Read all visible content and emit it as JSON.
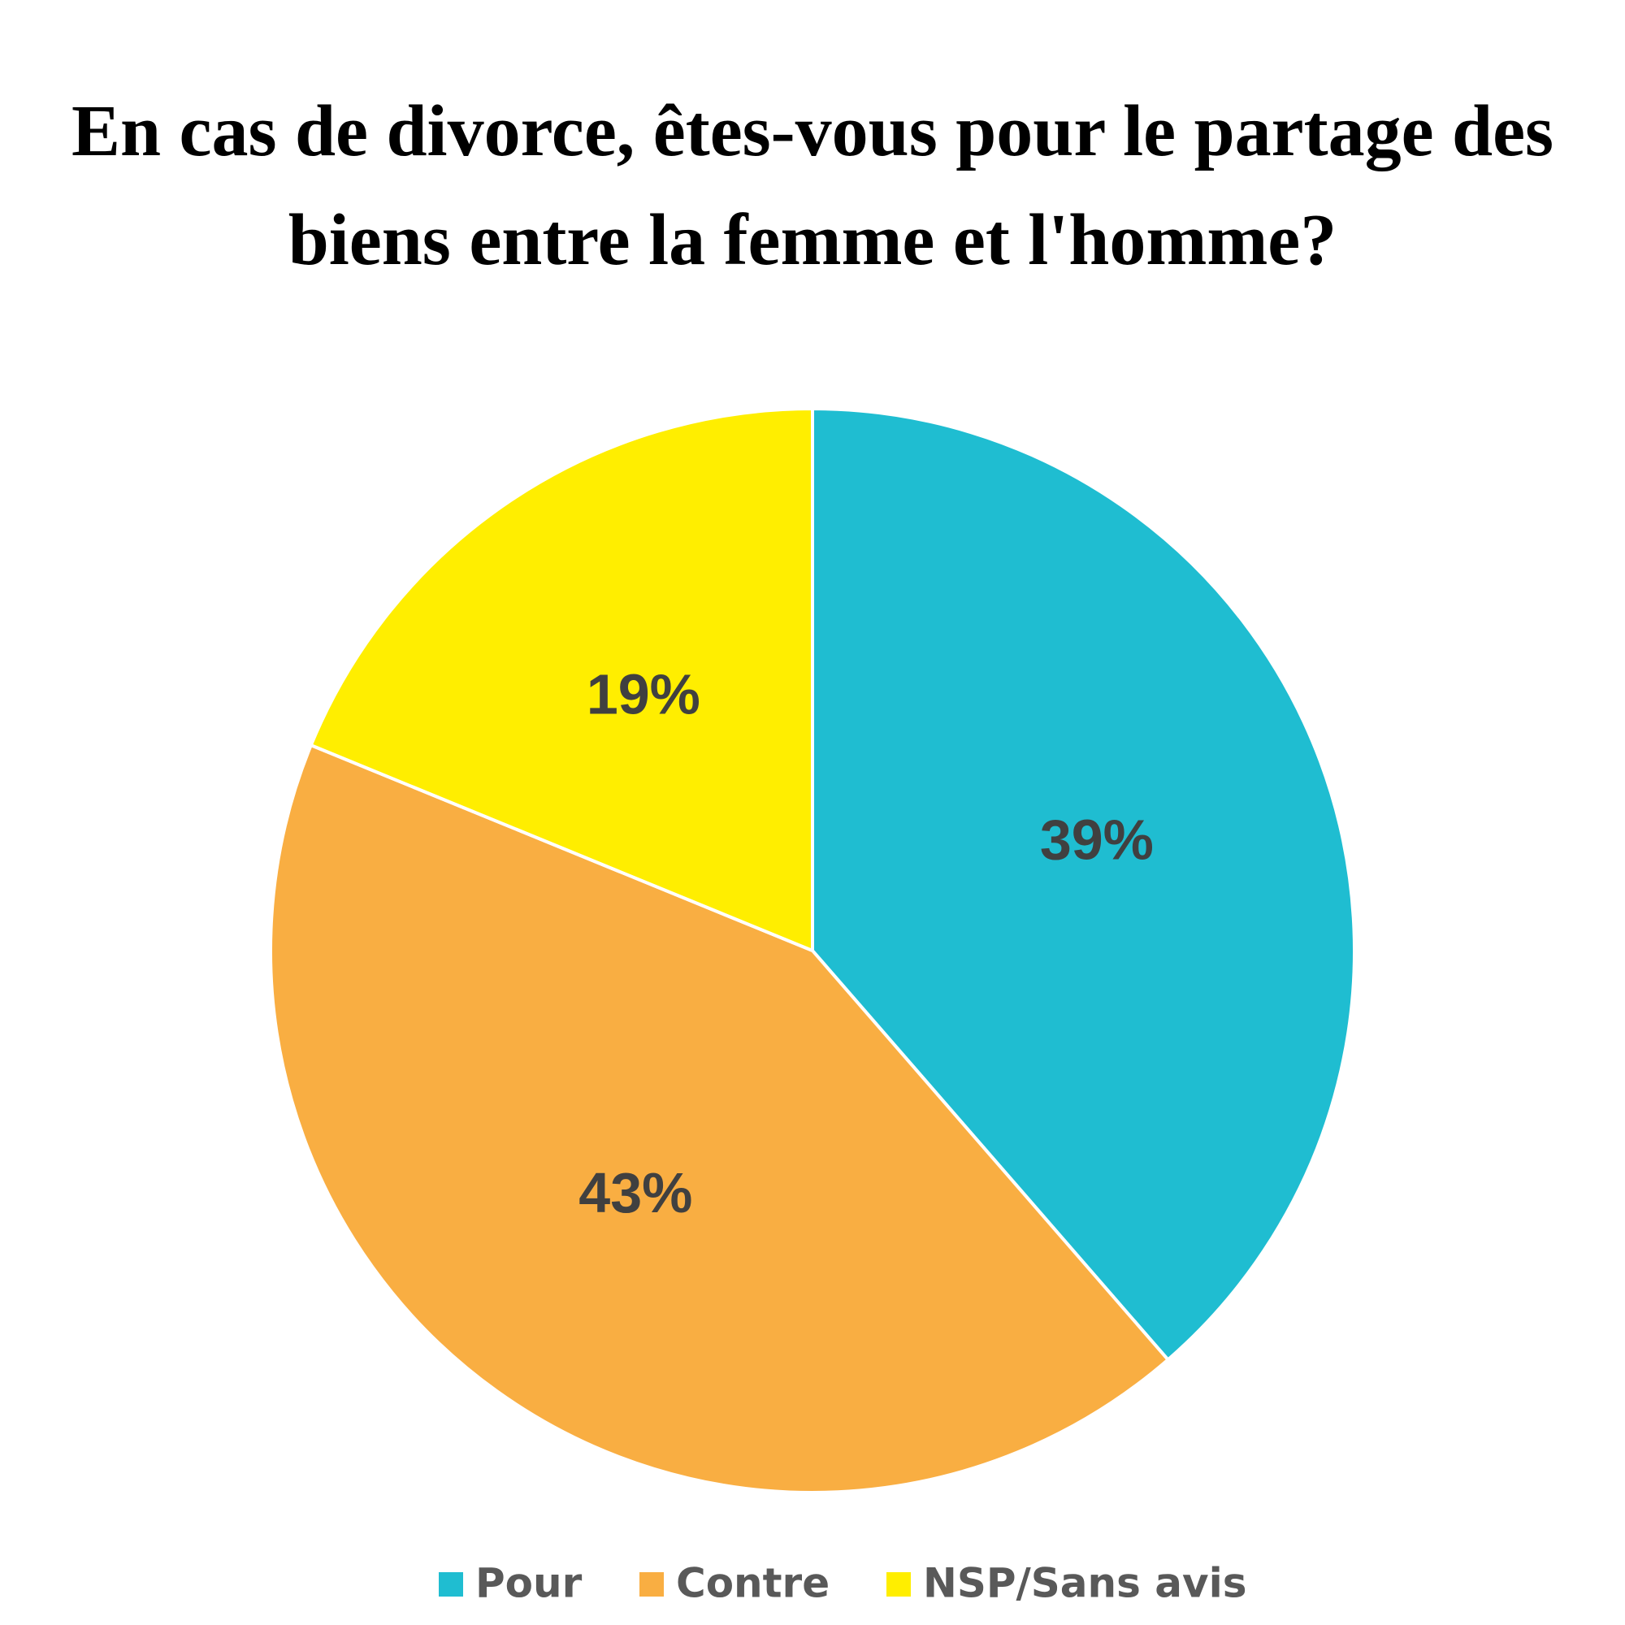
{
  "chart_data": {
    "type": "pie",
    "title": "En cas de divorce, êtes-vous pour le partage des biens entre la femme et l'homme?",
    "categories": [
      "Pour",
      "Contre",
      "NSP/Sans avis"
    ],
    "values": [
      39,
      43,
      19
    ],
    "value_labels": [
      "39%",
      "43%",
      "19%"
    ],
    "colors": [
      "#1fbdd1",
      "#f9ae42",
      "#ffee00"
    ],
    "legend": "bottom"
  }
}
